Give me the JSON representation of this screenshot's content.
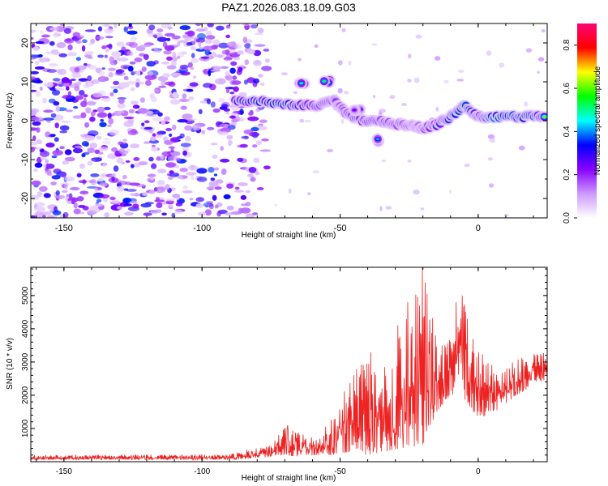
{
  "page_title": "PAZ1.2026.083.18.09.G03",
  "chart_data": [
    {
      "type": "heatmap",
      "title": "PAZ1.2026.083.18.09.G03",
      "xlabel": "Height of straight line (km)",
      "ylabel": "Frequency (Hz)",
      "xlim": [
        -162,
        25
      ],
      "ylim": [
        -25,
        25
      ],
      "x_ticks": [
        -150,
        -100,
        -50,
        0
      ],
      "y_ticks": [
        -20,
        -10,
        0,
        10,
        20
      ],
      "colorbar": {
        "label": "Normalized spectral amplitude",
        "range": [
          0.0,
          0.9
        ],
        "ticks": [
          0.0,
          0.2,
          0.4,
          0.6,
          0.8
        ],
        "colors": [
          "#ffffff",
          "#cc99ff",
          "#8800ff",
          "#0000ff",
          "#00ffff",
          "#00ff00",
          "#ffff00",
          "#ff0000",
          "#ff0077"
        ]
      },
      "noise_region_x": [
        -162,
        -82
      ],
      "ridge": [
        {
          "x": -88,
          "y": 5,
          "v": 0.55
        },
        {
          "x": -80,
          "y": 5,
          "v": 0.65
        },
        {
          "x": -72,
          "y": 4.5,
          "v": 0.7
        },
        {
          "x": -65,
          "y": 4,
          "v": 0.55
        },
        {
          "x": -58,
          "y": 4,
          "v": 0.45
        },
        {
          "x": -52,
          "y": 5,
          "v": 0.4
        },
        {
          "x": -48,
          "y": 2,
          "v": 0.4
        },
        {
          "x": -42,
          "y": 0,
          "v": 0.55
        },
        {
          "x": -36,
          "y": 0,
          "v": 0.45
        },
        {
          "x": -30,
          "y": -1,
          "v": 0.4
        },
        {
          "x": -24,
          "y": -1,
          "v": 0.35
        },
        {
          "x": -20,
          "y": -2,
          "v": 0.4
        },
        {
          "x": -15,
          "y": -1,
          "v": 0.55
        },
        {
          "x": -10,
          "y": 1,
          "v": 0.6
        },
        {
          "x": -5,
          "y": 4,
          "v": 0.8
        },
        {
          "x": 0,
          "y": 1,
          "v": 0.5
        },
        {
          "x": 5,
          "y": 1,
          "v": 0.8
        },
        {
          "x": 12,
          "y": 1,
          "v": 0.75
        },
        {
          "x": 18,
          "y": 1,
          "v": 0.7
        },
        {
          "x": 24,
          "y": 1,
          "v": 0.6
        }
      ],
      "blobs": [
        {
          "x": -63,
          "y": 10,
          "v": 0.45
        },
        {
          "x": -55,
          "y": 10,
          "v": 0.55
        },
        {
          "x": -35,
          "y": -5,
          "v": 0.4
        },
        {
          "x": -44,
          "y": 3,
          "v": 0.3
        }
      ]
    },
    {
      "type": "line",
      "xlabel": "Height of straight line (km)",
      "ylabel": "SNR (10 * v/v)",
      "xlim": [
        -162,
        25
      ],
      "ylim": [
        0,
        5850
      ],
      "x_ticks": [
        -150,
        -100,
        -50,
        0
      ],
      "y_ticks": [
        1000,
        2000,
        3000,
        4000,
        5000
      ],
      "series": [
        {
          "name": "SNR",
          "color": "#ee2222",
          "envelope": [
            {
              "x": -162,
              "low": 60,
              "high": 200
            },
            {
              "x": -90,
              "low": 60,
              "high": 220
            },
            {
              "x": -82,
              "low": 100,
              "high": 400
            },
            {
              "x": -75,
              "low": 150,
              "high": 500
            },
            {
              "x": -70,
              "low": 200,
              "high": 1100
            },
            {
              "x": -66,
              "low": 150,
              "high": 900
            },
            {
              "x": -58,
              "low": 200,
              "high": 700
            },
            {
              "x": -52,
              "low": 200,
              "high": 1500
            },
            {
              "x": -46,
              "low": 300,
              "high": 2600
            },
            {
              "x": -40,
              "low": 200,
              "high": 3400
            },
            {
              "x": -34,
              "low": 300,
              "high": 3000
            },
            {
              "x": -28,
              "low": 400,
              "high": 4000
            },
            {
              "x": -20,
              "low": 500,
              "high": 5850
            },
            {
              "x": -15,
              "low": 1500,
              "high": 3700
            },
            {
              "x": -10,
              "low": 2000,
              "high": 3700
            },
            {
              "x": -6,
              "low": 2000,
              "high": 5000
            },
            {
              "x": 0,
              "low": 1300,
              "high": 3500
            },
            {
              "x": 6,
              "low": 1500,
              "high": 2800
            },
            {
              "x": 14,
              "low": 2000,
              "high": 3100
            },
            {
              "x": 20,
              "low": 2300,
              "high": 3300
            },
            {
              "x": 25,
              "low": 2500,
              "high": 3400
            }
          ],
          "peaks": [
            {
              "x": -20.2,
              "y": 5850
            },
            {
              "x": -25.5,
              "y": 4800
            },
            {
              "x": -5.8,
              "y": 5000
            },
            {
              "x": -8,
              "y": 4800
            },
            {
              "x": -29,
              "y": 4100
            },
            {
              "x": -45,
              "y": 2600
            },
            {
              "x": -69,
              "y": 1100
            }
          ]
        }
      ]
    }
  ]
}
